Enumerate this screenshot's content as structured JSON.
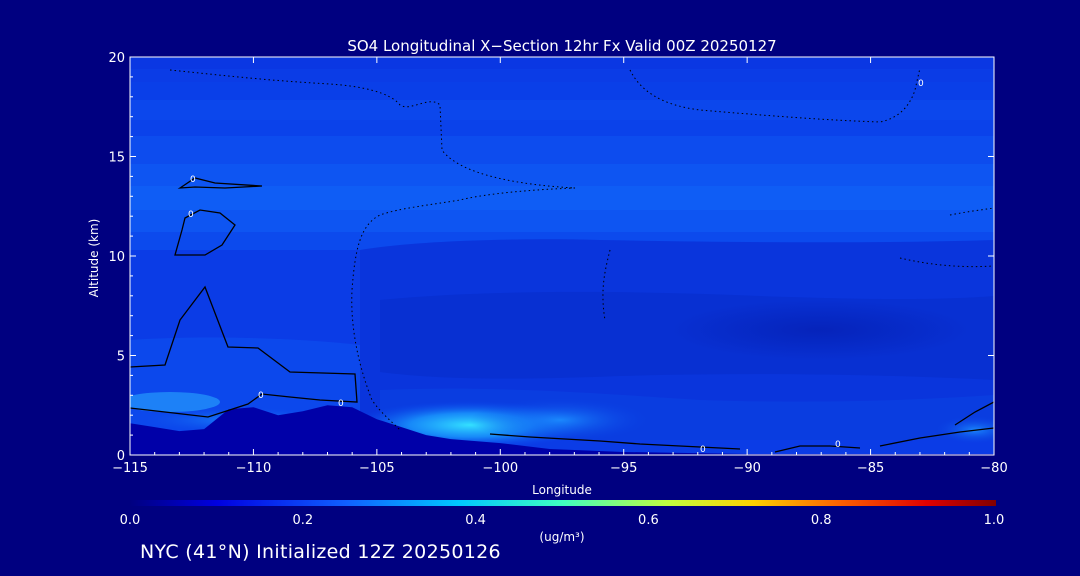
{
  "chart_data": {
    "type": "heatmap",
    "title": "SO4 Longitudinal X−Section 12hr  Fx Valid 00Z 20250127",
    "xlabel": "Longitude",
    "ylabel": "Altitude (km)",
    "xlim": [
      -115,
      -80
    ],
    "ylim": [
      0,
      20
    ],
    "x_ticks": [
      -115,
      -110,
      -105,
      -100,
      -95,
      -90,
      -85,
      -80
    ],
    "x_tick_labels": [
      "−115",
      "−110",
      "−105",
      "−100",
      "−95",
      "−90",
      "−85",
      "−80"
    ],
    "y_ticks": [
      0,
      5,
      10,
      15,
      20
    ],
    "y_tick_labels": [
      "0",
      "5",
      "10",
      "15",
      "20"
    ],
    "colorbar": {
      "range": [
        0.0,
        1.0
      ],
      "ticks": [
        0.0,
        0.2,
        0.4,
        0.6,
        0.8,
        1.0
      ],
      "tick_labels": [
        "0.0",
        "0.2",
        "0.4",
        "0.6",
        "0.8",
        "1.0"
      ],
      "units": "(ug/m³)"
    },
    "contour_label": "0",
    "terrain_km": [
      [
        -115,
        1.6
      ],
      [
        -114,
        1.4
      ],
      [
        -113,
        1.2
      ],
      [
        -112,
        1.3
      ],
      [
        -111,
        2.3
      ],
      [
        -110,
        2.4
      ],
      [
        -109,
        2.0
      ],
      [
        -108,
        2.2
      ],
      [
        -107,
        2.5
      ],
      [
        -106,
        2.4
      ],
      [
        -105,
        1.8
      ],
      [
        -104,
        1.4
      ],
      [
        -103,
        1.0
      ],
      [
        -102,
        0.8
      ],
      [
        -101,
        0.7
      ],
      [
        -100,
        0.6
      ],
      [
        -98,
        0.3
      ],
      [
        -95,
        0.15
      ],
      [
        -90,
        0.05
      ],
      [
        -85,
        0.05
      ],
      [
        -80,
        0.05
      ]
    ]
  },
  "footer": "NYC (41°N) Initialized 12Z 20250126",
  "colors": {
    "background": "#000080",
    "field_low": "#0a2fd9",
    "field_high": "#2ec8ff",
    "terrain": "#0000a8"
  }
}
